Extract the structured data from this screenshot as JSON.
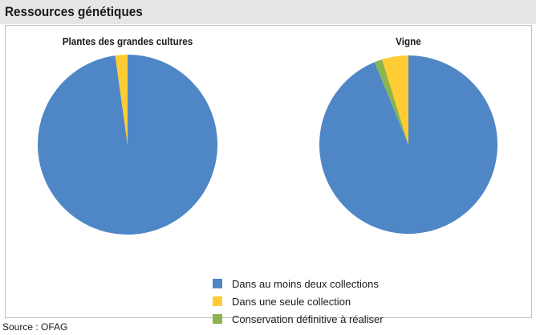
{
  "header": {
    "title": "Ressources génétiques"
  },
  "chart_data": [
    {
      "type": "pie",
      "title": "Plantes des grandes cultures",
      "labels": [
        "Dans au moins deux collections",
        "Dans une seule collection",
        "Conservation définitive à réaliser"
      ],
      "values": [
        97.8,
        2.2,
        0
      ],
      "colors": [
        "#4f86c6",
        "#ffcc33",
        "#8bb44e"
      ]
    },
    {
      "type": "pie",
      "title": "Vigne",
      "labels": [
        "Dans au moins deux collections",
        "Dans une seule collection",
        "Conservation définitive à réaliser"
      ],
      "values": [
        93.8,
        4.8,
        1.4
      ],
      "colors": [
        "#4f86c6",
        "#ffcc33",
        "#8bb44e"
      ]
    }
  ],
  "legend": {
    "items": [
      {
        "label": "Dans au moins deux collections",
        "color": "#4f86c6"
      },
      {
        "label": "Dans une seule collection",
        "color": "#ffcc33"
      },
      {
        "label": "Conservation définitive à réaliser",
        "color": "#8bb44e"
      }
    ]
  },
  "source": "Source : OFAG"
}
